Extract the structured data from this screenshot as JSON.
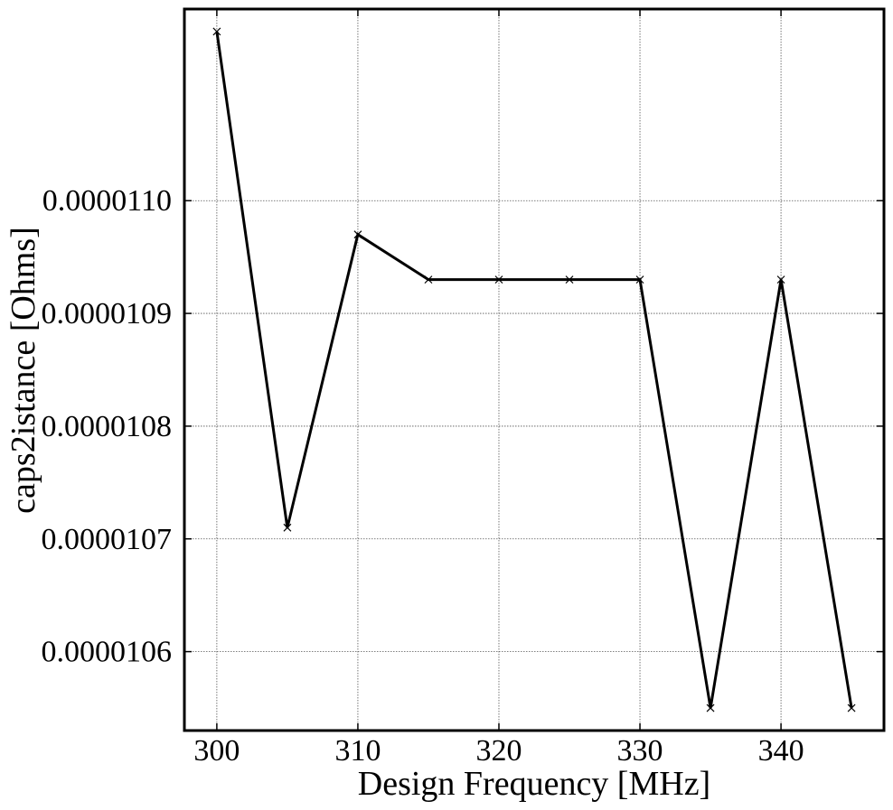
{
  "chart_data": {
    "type": "line",
    "title": "",
    "xlabel": "Design Frequency [MHz]",
    "ylabel": "caps2istance [Ohms]",
    "xlim": [
      297.7,
      347.3
    ],
    "ylim": [
      1.053e-05,
      1.117e-05
    ],
    "x_ticks": [
      300,
      310,
      320,
      330,
      340
    ],
    "x_tick_labels": [
      "300",
      "310",
      "320",
      "330",
      "340"
    ],
    "y_ticks": [
      1.06e-05,
      1.07e-05,
      1.08e-05,
      1.09e-05,
      1.1e-05
    ],
    "y_tick_labels": [
      "0.0000106",
      "0.0000107",
      "0.0000108",
      "0.0000109",
      "0.0000110"
    ],
    "grid": true,
    "marker": "x",
    "line_color": "#000000",
    "series": [
      {
        "x": [
          300,
          305,
          310,
          315,
          320,
          325,
          330,
          335,
          340,
          345
        ],
        "y": [
          1.115e-05,
          1.071e-05,
          1.097e-05,
          1.093e-05,
          1.093e-05,
          1.093e-05,
          1.093e-05,
          1.055e-05,
          1.093e-05,
          1.055e-05
        ]
      }
    ]
  }
}
